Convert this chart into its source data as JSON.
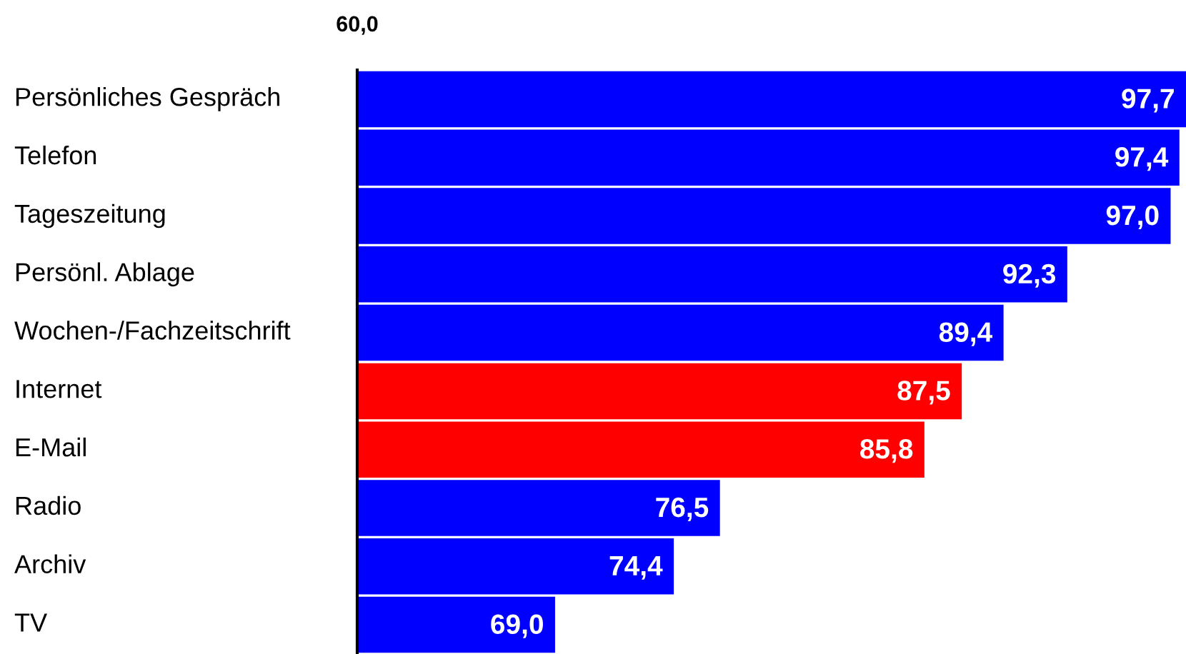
{
  "chart_data": {
    "type": "bar",
    "orientation": "horizontal",
    "categories": [
      "Persönliches Gespräch",
      "Telefon",
      "Tageszeitung",
      "Persönl. Ablage",
      "Wochen-/Fachzeitschrift",
      "Internet",
      "E-Mail",
      "Radio",
      "Archiv",
      "TV"
    ],
    "values": [
      97.7,
      97.4,
      97.0,
      92.3,
      89.4,
      87.5,
      85.8,
      76.5,
      74.4,
      69.0
    ],
    "colors": [
      "#0000ff",
      "#0000ff",
      "#0000ff",
      "#0000ff",
      "#0000ff",
      "#ff0000",
      "#ff0000",
      "#0000ff",
      "#0000ff",
      "#0000ff"
    ],
    "value_labels": [
      "97,7",
      "97,4",
      "97,0",
      "92,3",
      "89,4",
      "87,5",
      "85,8",
      "76,5",
      "74,4",
      "69,0"
    ],
    "xlim": [
      60,
      97.7
    ],
    "annotations": [
      "60,0"
    ]
  }
}
